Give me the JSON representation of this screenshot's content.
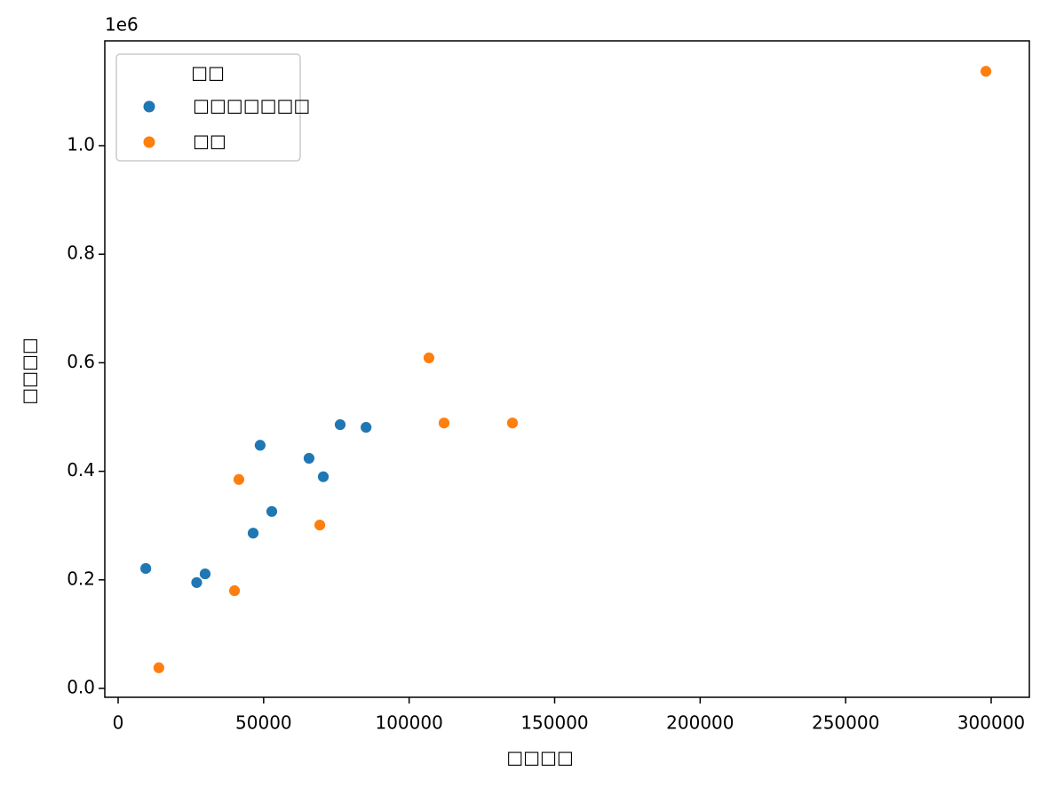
{
  "chart_data": {
    "type": "scatter",
    "x_label": "□□□□",
    "y_label": "□□□□",
    "y_offset_label": "1e6",
    "legend_title": "□□",
    "legend_position": "upper left",
    "xlim": [
      -4578,
      313123
    ],
    "ylim": [
      -16370,
      1193100
    ],
    "xticks": [
      0,
      50000,
      100000,
      150000,
      200000,
      250000,
      300000
    ],
    "yticks": [
      {
        "value": 0,
        "label": "0.0"
      },
      {
        "value": 200000,
        "label": "0.2"
      },
      {
        "value": 400000,
        "label": "0.4"
      },
      {
        "value": 600000,
        "label": "0.6"
      },
      {
        "value": 800000,
        "label": "0.8"
      },
      {
        "value": 1000000,
        "label": "1.0"
      }
    ],
    "series": [
      {
        "name": "□□□□□□□",
        "color": "#1f77b4",
        "x": [
          9500,
          27000,
          29900,
          46400,
          48800,
          52800,
          65600,
          70500,
          76300,
          85200
        ],
        "values": [
          221000,
          195000,
          211000,
          286000,
          448000,
          326000,
          424000,
          390000,
          486000,
          481000
        ]
      },
      {
        "name": "□□",
        "color": "#ff7f0e",
        "x": [
          14000,
          40000,
          41500,
          69300,
          106800,
          112000,
          135500,
          298200
        ],
        "values": [
          38000,
          180000,
          385000,
          301000,
          609000,
          489000,
          489000,
          1137000
        ]
      }
    ]
  }
}
